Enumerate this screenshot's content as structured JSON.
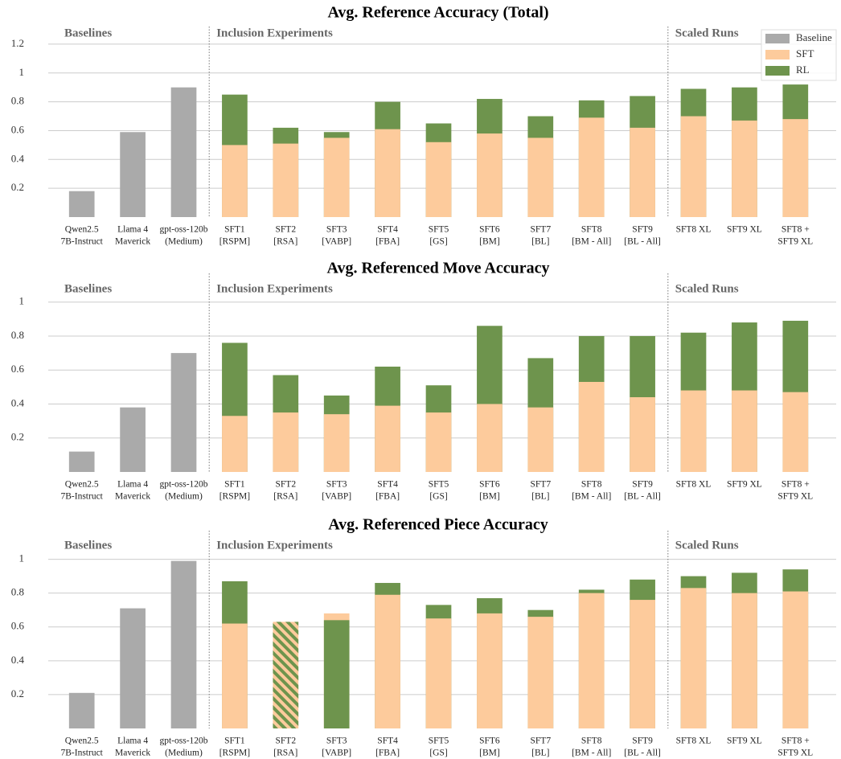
{
  "chart_data": [
    {
      "type": "bar",
      "title": "Avg. Reference Accuracy (Total)",
      "groups": [
        {
          "label": "Baselines",
          "categories": [
            [
              "Qwen2.5",
              "7B-Instruct"
            ],
            [
              "Llama 4",
              "Maverick"
            ],
            [
              "gpt-oss-120b",
              "(Medium)"
            ]
          ]
        },
        {
          "label": "Inclusion Experiments",
          "categories": [
            [
              "SFT1",
              "[RSPM]"
            ],
            [
              "SFT2",
              "[RSA]"
            ],
            [
              "SFT3",
              "[VABP]"
            ],
            [
              "SFT4",
              "[FBA]"
            ],
            [
              "SFT5",
              "[GS]"
            ],
            [
              "SFT6",
              "[BM]"
            ],
            [
              "SFT7",
              "[BL]"
            ],
            [
              "SFT8",
              "[BM - All]"
            ],
            [
              "SFT9",
              "[BL - All]"
            ]
          ]
        },
        {
          "label": "Scaled Runs",
          "categories": [
            [
              "SFT8 XL"
            ],
            [
              "SFT9 XL"
            ],
            [
              "SFT8 +",
              "SFT9 XL"
            ]
          ]
        }
      ],
      "series": [
        {
          "name": "Baseline",
          "color": "#aaaaaa",
          "values": [
            0.18,
            0.59,
            0.9,
            null,
            null,
            null,
            null,
            null,
            null,
            null,
            null,
            null,
            null,
            null,
            null
          ]
        },
        {
          "name": "SFT",
          "color": "#fdcb9c",
          "values": [
            null,
            null,
            null,
            0.5,
            0.51,
            0.55,
            0.61,
            0.52,
            0.58,
            0.55,
            0.69,
            0.62,
            0.7,
            0.67,
            0.68
          ]
        },
        {
          "name": "RL",
          "color": "#6e944d",
          "values": [
            null,
            null,
            null,
            0.85,
            0.62,
            0.59,
            0.8,
            0.65,
            0.82,
            0.7,
            0.81,
            0.84,
            0.89,
            0.9,
            0.92
          ]
        }
      ],
      "ylim": [
        0,
        1.3
      ],
      "yticks": [
        0.2,
        0.4,
        0.6,
        0.8,
        1,
        1.2
      ],
      "grid": true,
      "legend": "upper right"
    },
    {
      "type": "bar",
      "title": "Avg. Referenced Move Accuracy",
      "groups": [
        {
          "label": "Baselines",
          "categories": [
            [
              "Qwen2.5",
              "7B-Instruct"
            ],
            [
              "Llama 4",
              "Maverick"
            ],
            [
              "gpt-oss-120b",
              "(Medium)"
            ]
          ]
        },
        {
          "label": "Inclusion Experiments",
          "categories": [
            [
              "SFT1",
              "[RSPM]"
            ],
            [
              "SFT2",
              "[RSA]"
            ],
            [
              "SFT3",
              "[VABP]"
            ],
            [
              "SFT4",
              "[FBA]"
            ],
            [
              "SFT5",
              "[GS]"
            ],
            [
              "SFT6",
              "[BM]"
            ],
            [
              "SFT7",
              "[BL]"
            ],
            [
              "SFT8",
              "[BM - All]"
            ],
            [
              "SFT9",
              "[BL - All]"
            ]
          ]
        },
        {
          "label": "Scaled Runs",
          "categories": [
            [
              "SFT8 XL"
            ],
            [
              "SFT9 XL"
            ],
            [
              "SFT8 +",
              "SFT9 XL"
            ]
          ]
        }
      ],
      "series": [
        {
          "name": "Baseline",
          "color": "#aaaaaa",
          "values": [
            0.12,
            0.38,
            0.7,
            null,
            null,
            null,
            null,
            null,
            null,
            null,
            null,
            null,
            null,
            null,
            null
          ]
        },
        {
          "name": "SFT",
          "color": "#fdcb9c",
          "values": [
            null,
            null,
            null,
            0.33,
            0.35,
            0.34,
            0.39,
            0.35,
            0.4,
            0.38,
            0.53,
            0.44,
            0.48,
            0.48,
            0.47
          ]
        },
        {
          "name": "RL",
          "color": "#6e944d",
          "values": [
            null,
            null,
            null,
            0.76,
            0.57,
            0.45,
            0.62,
            0.51,
            0.86,
            0.67,
            0.8,
            0.8,
            0.82,
            0.88,
            0.89
          ]
        }
      ],
      "ylim": [
        0,
        1.15
      ],
      "yticks": [
        0.2,
        0.4,
        0.6,
        0.8,
        1
      ],
      "grid": true
    },
    {
      "type": "bar",
      "title": "Avg. Referenced Piece Accuracy",
      "groups": [
        {
          "label": "Baselines",
          "categories": [
            [
              "Qwen2.5",
              "7B-Instruct"
            ],
            [
              "Llama 4",
              "Maverick"
            ],
            [
              "gpt-oss-120b",
              "(Medium)"
            ]
          ]
        },
        {
          "label": "Inclusion Experiments",
          "categories": [
            [
              "SFT1",
              "[RSPM]"
            ],
            [
              "SFT2",
              "[RSA]"
            ],
            [
              "SFT3",
              "[VABP]"
            ],
            [
              "SFT4",
              "[FBA]"
            ],
            [
              "SFT5",
              "[GS]"
            ],
            [
              "SFT6",
              "[BM]"
            ],
            [
              "SFT7",
              "[BL]"
            ],
            [
              "SFT8",
              "[BM - All]"
            ],
            [
              "SFT9",
              "[BL - All]"
            ]
          ]
        },
        {
          "label": "Scaled Runs",
          "categories": [
            [
              "SFT8 XL"
            ],
            [
              "SFT9 XL"
            ],
            [
              "SFT8 +",
              "SFT9 XL"
            ]
          ]
        }
      ],
      "series": [
        {
          "name": "Baseline",
          "color": "#aaaaaa",
          "values": [
            0.21,
            0.71,
            0.99,
            null,
            null,
            null,
            null,
            null,
            null,
            null,
            null,
            null,
            null,
            null,
            null
          ]
        },
        {
          "name": "SFT",
          "color": "#fdcb9c",
          "values": [
            null,
            null,
            null,
            0.62,
            0.63,
            0.68,
            0.79,
            0.65,
            0.68,
            0.66,
            0.8,
            0.76,
            0.83,
            0.8,
            0.81
          ]
        },
        {
          "name": "RL",
          "color": "#6e944d",
          "values": [
            null,
            null,
            null,
            0.87,
            0.63,
            0.64,
            0.86,
            0.73,
            0.77,
            0.7,
            0.82,
            0.88,
            0.9,
            0.92,
            0.94
          ]
        }
      ],
      "ylim": [
        0,
        1.15
      ],
      "yticks": [
        0.2,
        0.4,
        0.6,
        0.8,
        1
      ],
      "grid": true
    }
  ]
}
